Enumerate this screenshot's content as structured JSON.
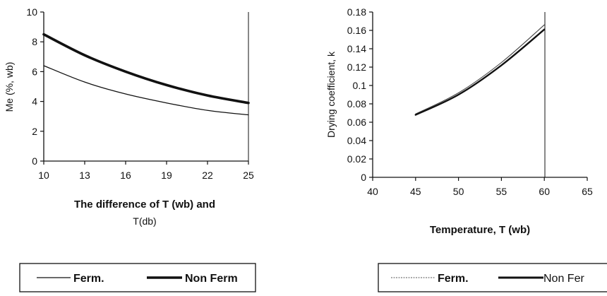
{
  "chart_data": [
    {
      "type": "line",
      "title": "",
      "xlabel": "The difference of T (wb) and",
      "xlabel_line2": "T(db)",
      "ylabel": "Me (%, wb)",
      "xlim": [
        10,
        25
      ],
      "ylim": [
        0,
        10
      ],
      "x_ticks": [
        "10",
        "13",
        "16",
        "19",
        "22",
        "25"
      ],
      "y_ticks": [
        "0",
        "2",
        "4",
        "6",
        "8",
        "10"
      ],
      "grid": false,
      "legend_position": "bottom",
      "series": [
        {
          "name": "Ferm.",
          "x": [
            10,
            13,
            16,
            19,
            22,
            25
          ],
          "y": [
            6.4,
            5.3,
            4.5,
            3.9,
            3.4,
            3.1
          ]
        },
        {
          "name": "Non Ferm",
          "x": [
            10,
            13,
            16,
            19,
            22,
            25
          ],
          "y": [
            8.5,
            7.1,
            6.0,
            5.1,
            4.4,
            3.9
          ]
        }
      ]
    },
    {
      "type": "line",
      "title": "",
      "xlabel": "Temperature, T (wb)",
      "ylabel": "Drying coefficient, k",
      "xlim": [
        40,
        65
      ],
      "ylim": [
        0,
        0.18
      ],
      "x_ticks": [
        "40",
        "45",
        "50",
        "55",
        "60",
        "65"
      ],
      "y_ticks": [
        "0",
        "0.02",
        "0.04",
        "0.06",
        "0.08",
        "0.1",
        "0.12",
        "0.14",
        "0.16",
        "0.18"
      ],
      "grid": false,
      "legend_position": "bottom",
      "series": [
        {
          "name": "Ferm.",
          "x": [
            45,
            50,
            55,
            60
          ],
          "y": [
            0.069,
            0.092,
            0.125,
            0.166
          ]
        },
        {
          "name": "Non Fer",
          "x": [
            45,
            50,
            55,
            60
          ],
          "y": [
            0.068,
            0.09,
            0.122,
            0.161
          ]
        }
      ]
    }
  ]
}
